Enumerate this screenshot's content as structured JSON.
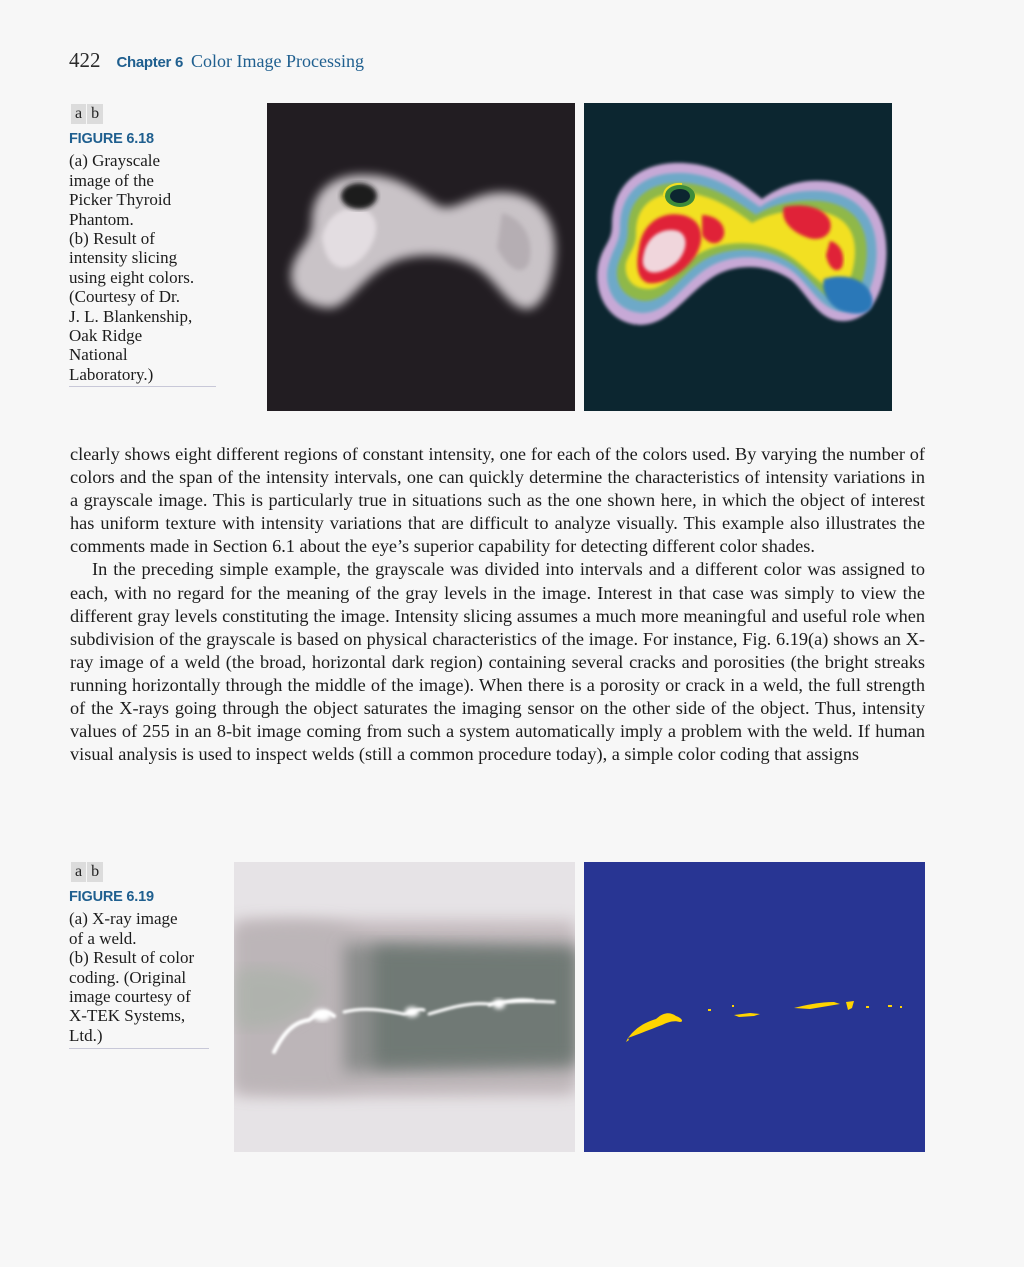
{
  "header": {
    "page_number": "422",
    "chapter_label": "Chapter 6",
    "chapter_title": "Color Image Processing"
  },
  "figure_6_18": {
    "panel_labels": [
      "a",
      "b"
    ],
    "number": "FIGURE 6.18",
    "caption_lines": [
      "(a) Grayscale",
      "image of the",
      "Picker Thyroid",
      "Phantom.",
      "(b) Result of",
      "intensity slicing",
      "using eight colors.",
      "(Courtesy of Dr.",
      "J. L. Blankenship,",
      "Oak Ridge",
      "National",
      "Laboratory.)"
    ]
  },
  "body": {
    "paragraph_1": "clearly shows eight different regions of constant intensity, one for each of the colors used. By varying the number of colors and the span of the intensity intervals, one can quickly determine the characteristics of intensity variations in a grayscale image. This is particularly true in situations such as the one shown here, in which the object of interest has uniform texture with intensity variations that are difficult to analyze visually. This example also illustrates the comments made in Section 6.1 about the eye’s superior capability for detecting different color shades.",
    "paragraph_2": "In the preceding simple example, the grayscale was divided into intervals and a different color was assigned to each, with no regard for the meaning of the gray levels in the image. Interest in that case was simply to view the different gray levels constituting the image. Intensity slicing assumes a much more meaningful and useful role when subdivision of the grayscale is based on physical characteristics of the image. For instance, Fig. 6.19(a) shows an X-ray image of a weld (the broad, horizontal dark region) containing several cracks and porosities (the bright streaks running horizontally through the middle of the image). When there is a porosity or crack in a weld, the full strength of the X-rays going through the object saturates the imaging sensor on the other side of the object. Thus, intensity values of 255 in an 8-bit image coming from such a system automatically imply a problem with the weld. If human visual analysis is used to inspect welds (still a common procedure today), a simple color coding that assigns"
  },
  "figure_6_19": {
    "panel_labels": [
      "a",
      "b"
    ],
    "number": "FIGURE 6.19",
    "caption_lines": [
      "(a) X-ray image",
      "of a weld.",
      "(b) Result of color",
      "coding. (Original",
      "image courtesy of",
      "X-TEK Systems,",
      "Ltd.)"
    ]
  },
  "colors": {
    "accent": "#1f5f8f",
    "weld_background": "#283593",
    "weld_crack": "#ffd400"
  }
}
